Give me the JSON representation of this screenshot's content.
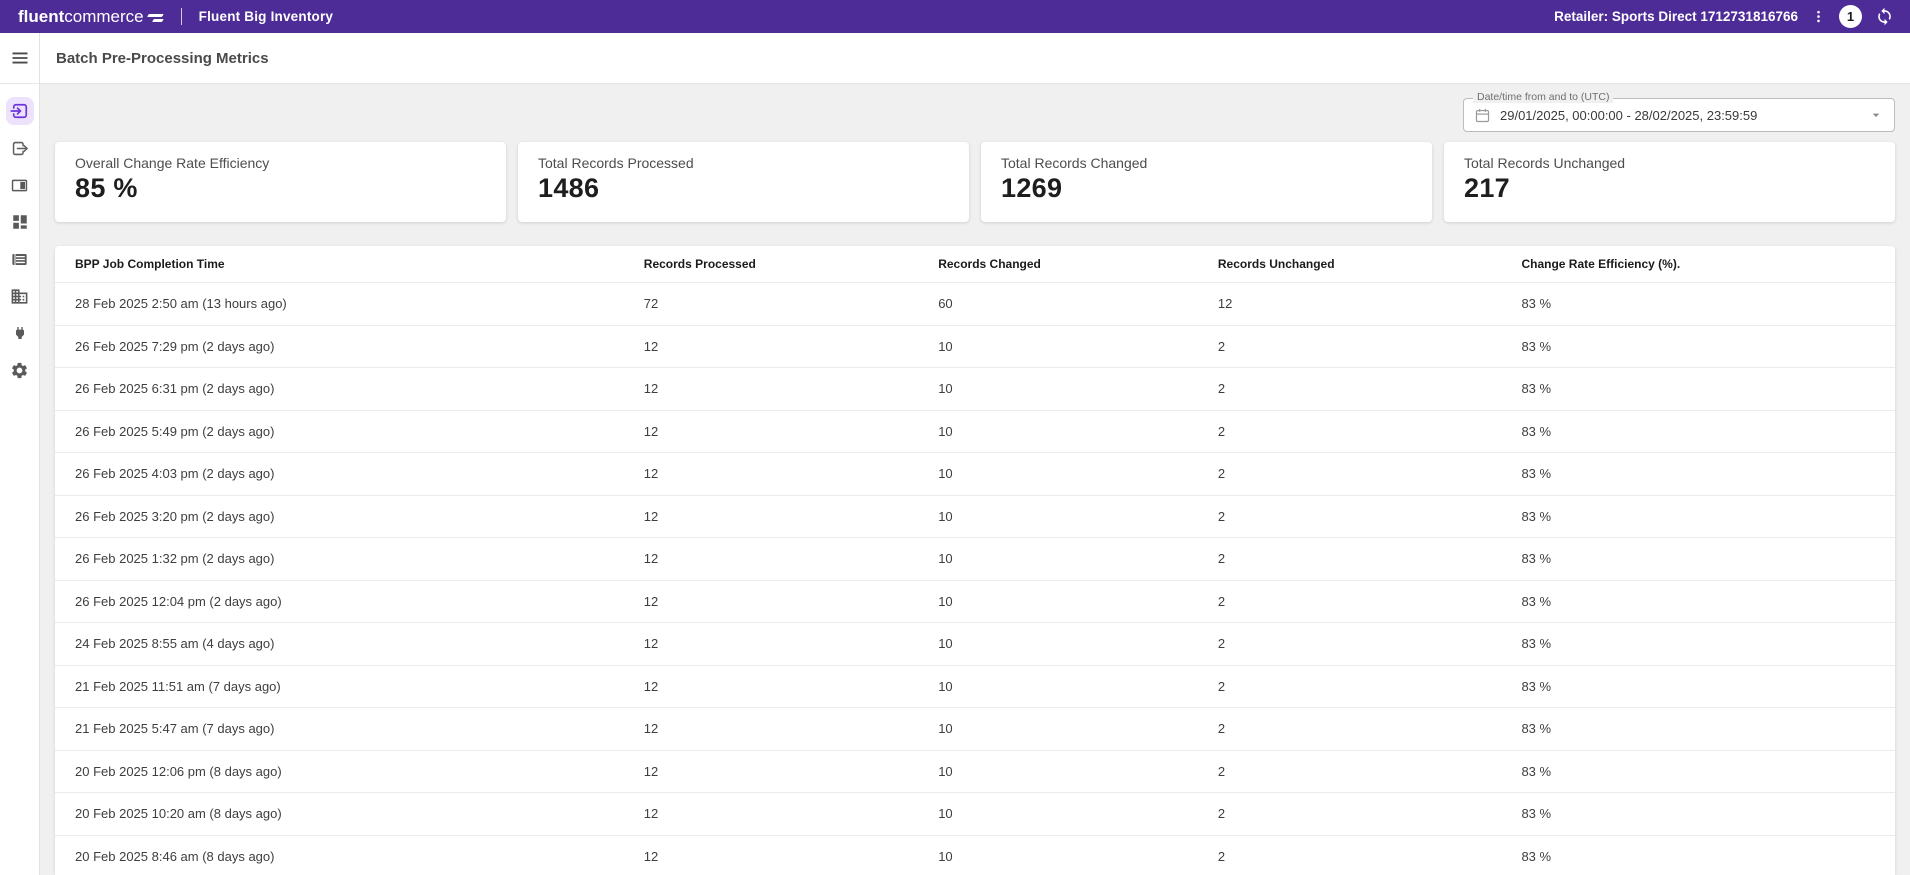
{
  "topbar": {
    "logo_bold": "fluent",
    "logo_light": "commerce",
    "app_title": "Fluent Big Inventory",
    "retailer_label": "Retailer: Sports Direct 1712731816766",
    "notification_count": "1"
  },
  "page": {
    "title": "Batch Pre-Processing Metrics"
  },
  "sidebar": {
    "items": [
      {
        "id": "batch-inbound",
        "icon": "arrow-into-box-icon",
        "active": true
      },
      {
        "id": "batch-outbound",
        "icon": "arrow-out-of-box-icon",
        "active": false
      },
      {
        "id": "panels",
        "icon": "side-panel-icon",
        "active": false
      },
      {
        "id": "dashboard",
        "icon": "dashboard-icon",
        "active": false
      },
      {
        "id": "lists",
        "icon": "list-icon",
        "active": false
      },
      {
        "id": "organization",
        "icon": "building-icon",
        "active": false
      },
      {
        "id": "connectors",
        "icon": "plug-icon",
        "active": false
      },
      {
        "id": "settings",
        "icon": "gear-icon",
        "active": false
      }
    ]
  },
  "filter": {
    "date_range_label": "Date/time from and to (UTC)",
    "date_range_value": "29/01/2025, 00:00:00 - 28/02/2025, 23:59:59"
  },
  "metrics": [
    {
      "label": "Overall Change Rate Efficiency",
      "value": "85 %"
    },
    {
      "label": "Total Records Processed",
      "value": "1486"
    },
    {
      "label": "Total Records Changed",
      "value": "1269"
    },
    {
      "label": "Total Records Unchanged",
      "value": "217"
    }
  ],
  "table": {
    "columns": [
      "BPP Job Completion Time",
      "Records Processed",
      "Records Changed",
      "Records Unchanged",
      "Change Rate Efficiency (%)."
    ],
    "rows": [
      [
        "28 Feb 2025 2:50 am (13 hours ago)",
        "72",
        "60",
        "12",
        "83 %"
      ],
      [
        "26 Feb 2025 7:29 pm (2 days ago)",
        "12",
        "10",
        "2",
        "83 %"
      ],
      [
        "26 Feb 2025 6:31 pm (2 days ago)",
        "12",
        "10",
        "2",
        "83 %"
      ],
      [
        "26 Feb 2025 5:49 pm (2 days ago)",
        "12",
        "10",
        "2",
        "83 %"
      ],
      [
        "26 Feb 2025 4:03 pm (2 days ago)",
        "12",
        "10",
        "2",
        "83 %"
      ],
      [
        "26 Feb 2025 3:20 pm (2 days ago)",
        "12",
        "10",
        "2",
        "83 %"
      ],
      [
        "26 Feb 2025 1:32 pm (2 days ago)",
        "12",
        "10",
        "2",
        "83 %"
      ],
      [
        "26 Feb 2025 12:04 pm (2 days ago)",
        "12",
        "10",
        "2",
        "83 %"
      ],
      [
        "24 Feb 2025 8:55 am (4 days ago)",
        "12",
        "10",
        "2",
        "83 %"
      ],
      [
        "21 Feb 2025 11:51 am (7 days ago)",
        "12",
        "10",
        "2",
        "83 %"
      ],
      [
        "21 Feb 2025 5:47 am (7 days ago)",
        "12",
        "10",
        "2",
        "83 %"
      ],
      [
        "20 Feb 2025 12:06 pm (8 days ago)",
        "12",
        "10",
        "2",
        "83 %"
      ],
      [
        "20 Feb 2025 10:20 am (8 days ago)",
        "12",
        "10",
        "2",
        "83 %"
      ],
      [
        "20 Feb 2025 8:46 am (8 days ago)",
        "12",
        "10",
        "2",
        "83 %"
      ]
    ]
  },
  "colors": {
    "topbar_bg": "#4D2C98",
    "active_icon": "#6B35D9",
    "active_icon_bg": "#ECE2FC",
    "page_bg": "#F0F0F0",
    "card_bg": "#FFFFFF"
  }
}
